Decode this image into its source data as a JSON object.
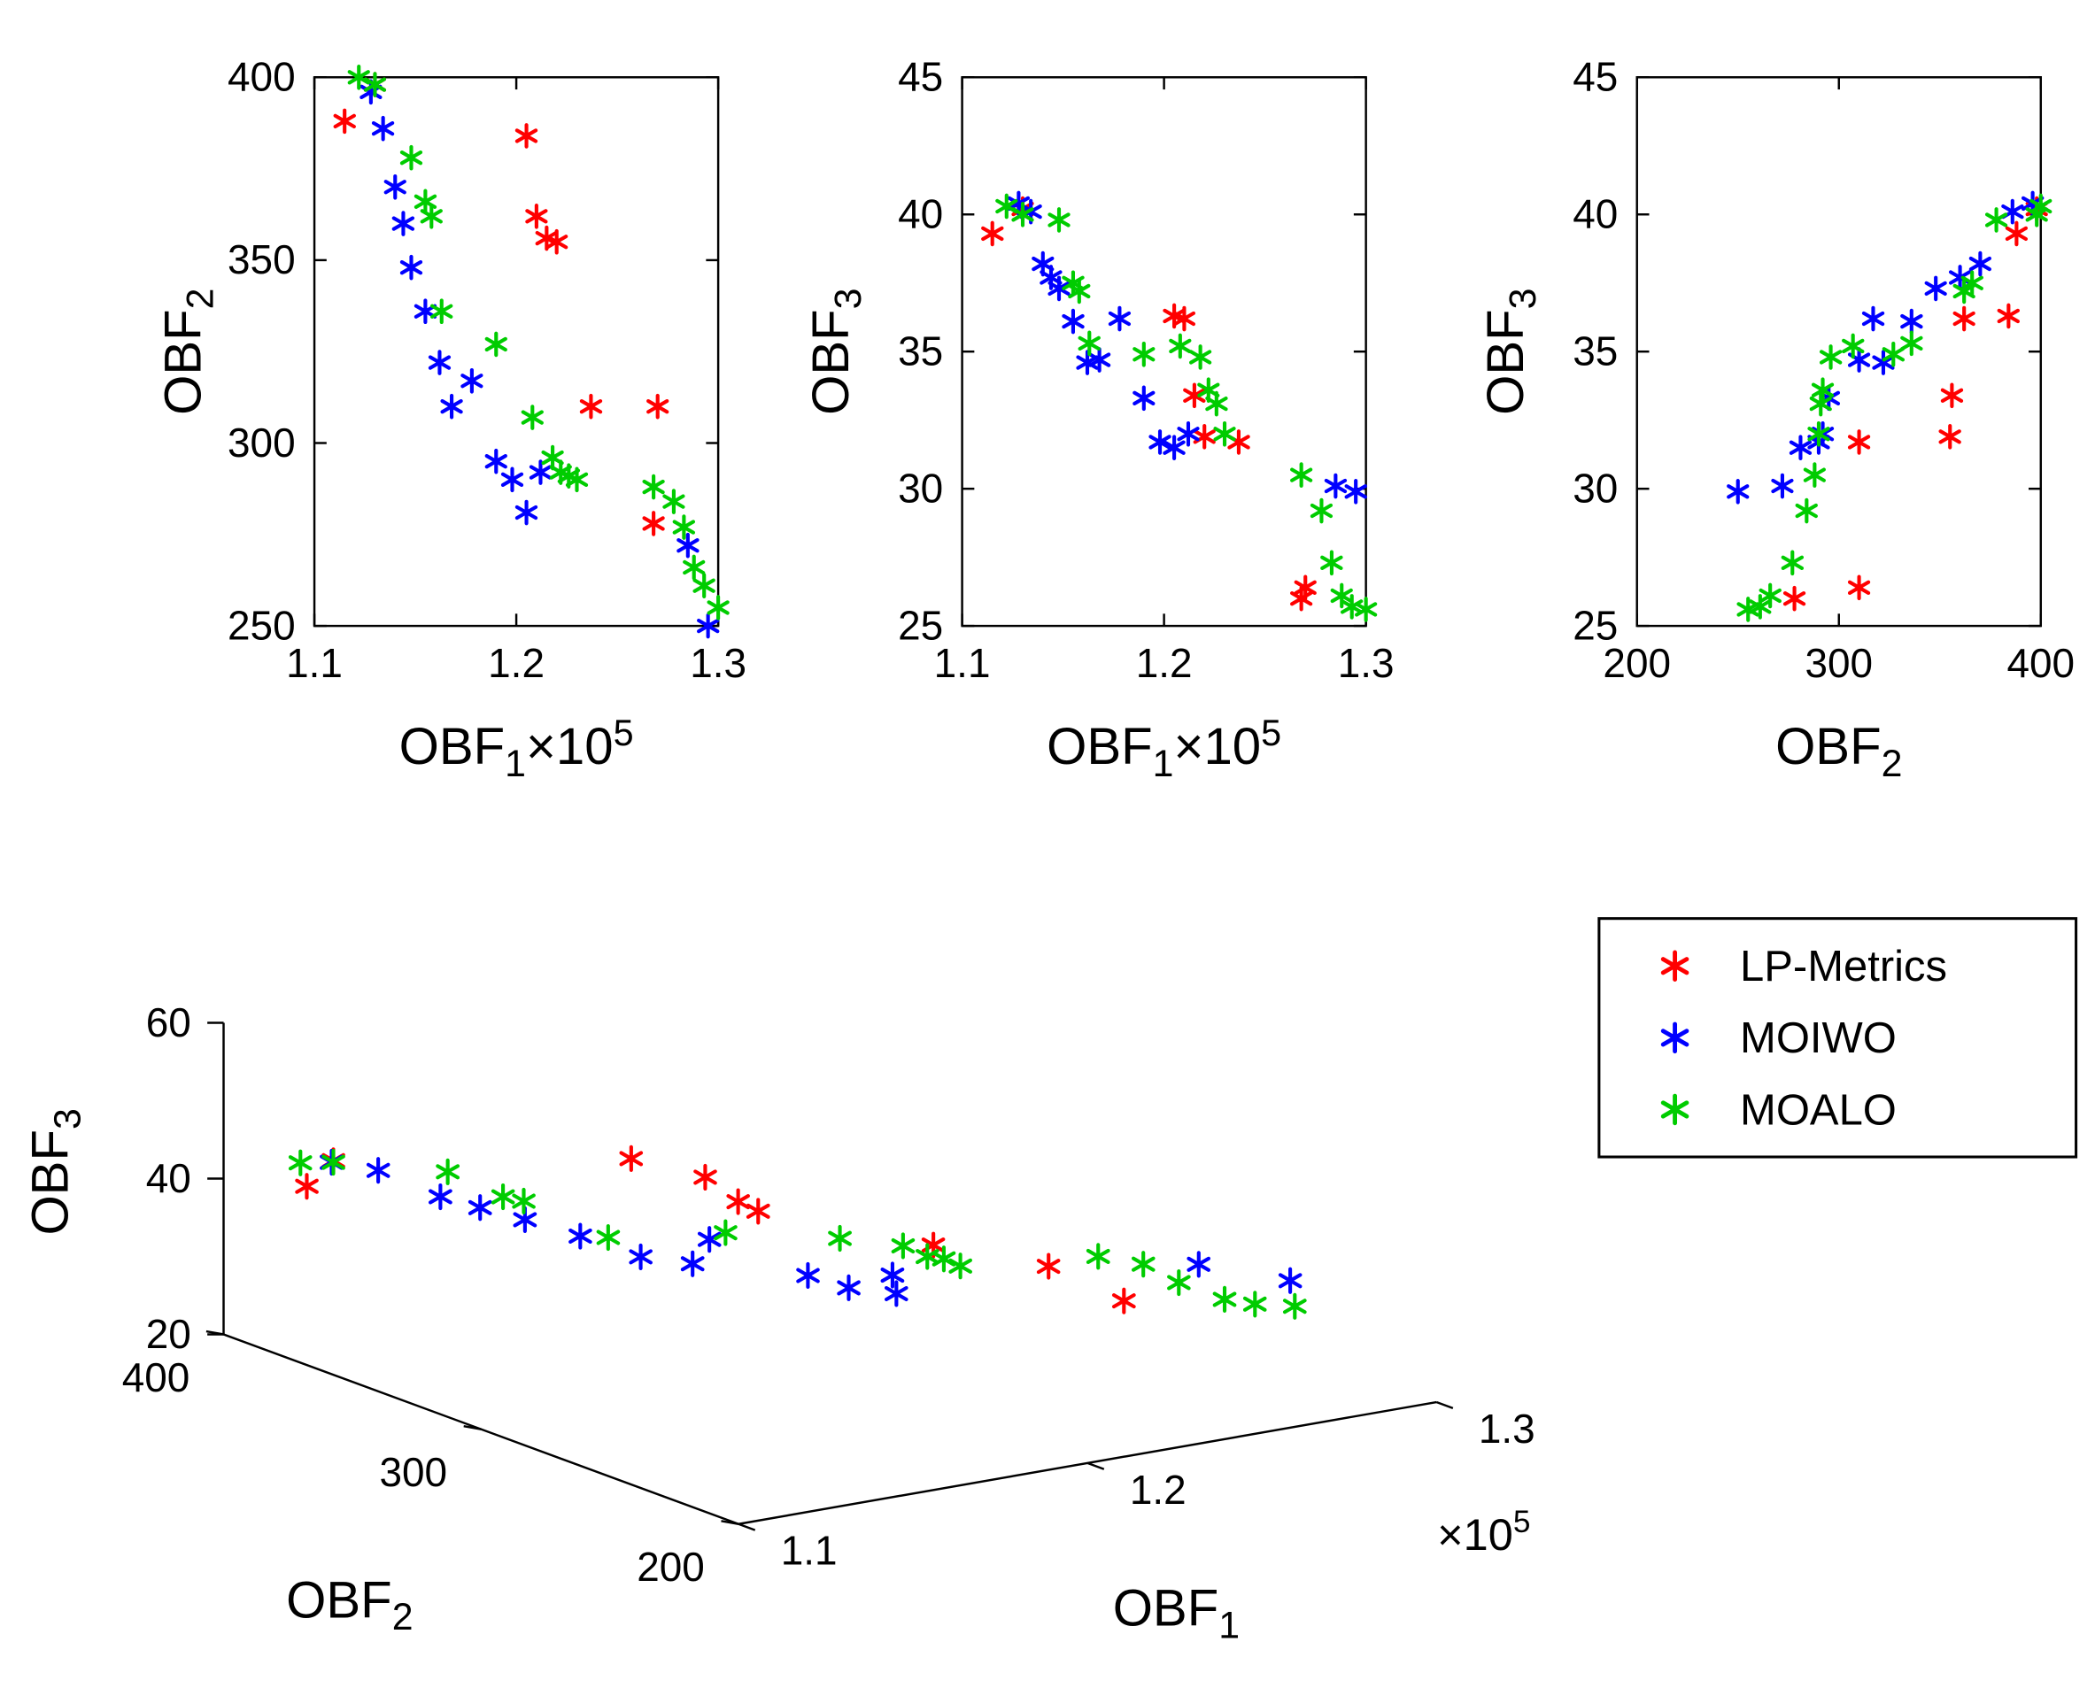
{
  "figure": {
    "background": "#FFFFFF",
    "marker_style": "asterisk",
    "text_color": "#000000",
    "axis_color": "#000000"
  },
  "legend": {
    "position": "right-of-bottom-plot",
    "border": true,
    "entries": [
      {
        "label": "LP-Metrics",
        "color": "#FF0000"
      },
      {
        "label": "MOIWO",
        "color": "#0000FF"
      },
      {
        "label": "MOALO",
        "color": "#00CC00"
      }
    ]
  },
  "chart_data": [
    {
      "id": "obf2-vs-obf1",
      "type": "scatter",
      "grid": false,
      "xlabel": {
        "base": "OBF",
        "sub": "1",
        "mult": "×10",
        "exp": "5"
      },
      "ylabel": {
        "base": "OBF",
        "sub": "2"
      },
      "xlim": [
        1.1,
        1.3
      ],
      "ylim": [
        250,
        400
      ],
      "xticks": [
        1.1,
        1.2,
        1.3
      ],
      "xtick_labels": [
        "1.1",
        "1.2",
        "1.3"
      ],
      "yticks": [
        250,
        300,
        350,
        400
      ],
      "ytick_labels": [
        "250",
        "300",
        "350",
        "400"
      ],
      "series": [
        {
          "name": "LP-Metrics",
          "color": "#FF0000",
          "points": [
            [
              1.115,
              388
            ],
            [
              1.13,
              398
            ],
            [
              1.205,
              384
            ],
            [
              1.21,
              362
            ],
            [
              1.215,
              356
            ],
            [
              1.22,
              355
            ],
            [
              1.237,
              310
            ],
            [
              1.27,
              310
            ],
            [
              1.268,
              278
            ]
          ]
        },
        {
          "name": "MOIWO",
          "color": "#0000FF",
          "points": [
            [
              1.128,
              396
            ],
            [
              1.134,
              386
            ],
            [
              1.14,
              370
            ],
            [
              1.144,
              360
            ],
            [
              1.148,
              348
            ],
            [
              1.155,
              336
            ],
            [
              1.162,
              322
            ],
            [
              1.168,
              310
            ],
            [
              1.178,
              317
            ],
            [
              1.19,
              295
            ],
            [
              1.198,
              290
            ],
            [
              1.205,
              281
            ],
            [
              1.212,
              292
            ],
            [
              1.285,
              272
            ],
            [
              1.295,
              250
            ]
          ]
        },
        {
          "name": "MOALO",
          "color": "#00CC00",
          "points": [
            [
              1.122,
              400
            ],
            [
              1.13,
              398
            ],
            [
              1.148,
              378
            ],
            [
              1.155,
              366
            ],
            [
              1.158,
              362
            ],
            [
              1.163,
              336
            ],
            [
              1.19,
              327
            ],
            [
              1.208,
              307
            ],
            [
              1.218,
              296
            ],
            [
              1.222,
              292
            ],
            [
              1.226,
              291
            ],
            [
              1.23,
              290
            ],
            [
              1.268,
              288
            ],
            [
              1.278,
              284
            ],
            [
              1.283,
              277
            ],
            [
              1.288,
              266
            ],
            [
              1.293,
              261
            ],
            [
              1.3,
              255
            ]
          ]
        }
      ]
    },
    {
      "id": "obf3-vs-obf1",
      "type": "scatter",
      "grid": false,
      "xlabel": {
        "base": "OBF",
        "sub": "1",
        "mult": "×10",
        "exp": "5"
      },
      "ylabel": {
        "base": "OBF",
        "sub": "3"
      },
      "xlim": [
        1.1,
        1.3
      ],
      "ylim": [
        25,
        45
      ],
      "xticks": [
        1.1,
        1.2,
        1.3
      ],
      "xtick_labels": [
        "1.1",
        "1.2",
        "1.3"
      ],
      "yticks": [
        25,
        30,
        35,
        40,
        45
      ],
      "ytick_labels": [
        "25",
        "30",
        "35",
        "40",
        "45"
      ],
      "series": [
        {
          "name": "LP-Metrics",
          "color": "#FF0000",
          "points": [
            [
              1.115,
              39.3
            ],
            [
              1.13,
              40.2
            ],
            [
              1.205,
              36.3
            ],
            [
              1.21,
              36.2
            ],
            [
              1.215,
              33.4
            ],
            [
              1.22,
              31.9
            ],
            [
              1.237,
              31.7
            ],
            [
              1.27,
              26.4
            ],
            [
              1.268,
              26.0
            ]
          ]
        },
        {
          "name": "MOIWO",
          "color": "#0000FF",
          "points": [
            [
              1.128,
              40.4
            ],
            [
              1.134,
              40.1
            ],
            [
              1.14,
              38.2
            ],
            [
              1.144,
              37.7
            ],
            [
              1.148,
              37.3
            ],
            [
              1.155,
              36.1
            ],
            [
              1.162,
              34.6
            ],
            [
              1.168,
              34.7
            ],
            [
              1.178,
              36.2
            ],
            [
              1.19,
              33.3
            ],
            [
              1.198,
              31.7
            ],
            [
              1.205,
              31.5
            ],
            [
              1.212,
              32.0
            ],
            [
              1.285,
              30.1
            ],
            [
              1.295,
              29.9
            ]
          ]
        },
        {
          "name": "MOALO",
          "color": "#00CC00",
          "points": [
            [
              1.122,
              40.3
            ],
            [
              1.13,
              40.0
            ],
            [
              1.148,
              39.8
            ],
            [
              1.155,
              37.5
            ],
            [
              1.158,
              37.2
            ],
            [
              1.163,
              35.3
            ],
            [
              1.19,
              34.9
            ],
            [
              1.208,
              35.2
            ],
            [
              1.218,
              34.8
            ],
            [
              1.222,
              33.6
            ],
            [
              1.226,
              33.1
            ],
            [
              1.23,
              32.0
            ],
            [
              1.268,
              30.5
            ],
            [
              1.278,
              29.2
            ],
            [
              1.283,
              27.3
            ],
            [
              1.288,
              26.1
            ],
            [
              1.293,
              25.7
            ],
            [
              1.3,
              25.6
            ]
          ]
        }
      ]
    },
    {
      "id": "obf3-vs-obf2",
      "type": "scatter",
      "grid": false,
      "xlabel": {
        "base": "OBF",
        "sub": "2"
      },
      "ylabel": {
        "base": "OBF",
        "sub": "3"
      },
      "xlim": [
        200,
        400
      ],
      "ylim": [
        25,
        45
      ],
      "xticks": [
        200,
        300,
        400
      ],
      "xtick_labels": [
        "200",
        "300",
        "400"
      ],
      "yticks": [
        25,
        30,
        35,
        40,
        45
      ],
      "ytick_labels": [
        "25",
        "30",
        "35",
        "40",
        "45"
      ],
      "series": [
        {
          "name": "LP-Metrics",
          "color": "#FF0000",
          "points": [
            [
              388,
              39.3
            ],
            [
              398,
              40.2
            ],
            [
              384,
              36.3
            ],
            [
              362,
              36.2
            ],
            [
              356,
              33.4
            ],
            [
              355,
              31.9
            ],
            [
              310,
              31.7
            ],
            [
              310,
              26.4
            ],
            [
              278,
              26.0
            ]
          ]
        },
        {
          "name": "MOIWO",
          "color": "#0000FF",
          "points": [
            [
              396,
              40.4
            ],
            [
              386,
              40.1
            ],
            [
              370,
              38.2
            ],
            [
              360,
              37.7
            ],
            [
              348,
              37.3
            ],
            [
              336,
              36.1
            ],
            [
              322,
              34.6
            ],
            [
              310,
              34.7
            ],
            [
              317,
              36.2
            ],
            [
              295,
              33.3
            ],
            [
              290,
              31.7
            ],
            [
              281,
              31.5
            ],
            [
              292,
              32.0
            ],
            [
              272,
              30.1
            ],
            [
              250,
              29.9
            ]
          ]
        },
        {
          "name": "MOALO",
          "color": "#00CC00",
          "points": [
            [
              400,
              40.3
            ],
            [
              398,
              40.0
            ],
            [
              378,
              39.8
            ],
            [
              366,
              37.5
            ],
            [
              362,
              37.2
            ],
            [
              336,
              35.3
            ],
            [
              327,
              34.9
            ],
            [
              307,
              35.2
            ],
            [
              296,
              34.8
            ],
            [
              292,
              33.6
            ],
            [
              291,
              33.1
            ],
            [
              290,
              32.0
            ],
            [
              288,
              30.5
            ],
            [
              284,
              29.2
            ],
            [
              277,
              27.3
            ],
            [
              266,
              26.1
            ],
            [
              261,
              25.7
            ],
            [
              255,
              25.6
            ]
          ]
        }
      ]
    },
    {
      "id": "pareto-3d",
      "type": "scatter3d",
      "grid": false,
      "xlabel": {
        "base": "OBF",
        "sub": "1"
      },
      "x_exponent": {
        "base": "×10",
        "exp": "5"
      },
      "ylabel": {
        "base": "OBF",
        "sub": "2"
      },
      "zlabel": {
        "base": "OBF",
        "sub": "3"
      },
      "xlim": [
        1.1,
        1.3
      ],
      "ylim": [
        200,
        400
      ],
      "zlim": [
        20,
        60
      ],
      "xticks": [
        1.1,
        1.2,
        1.3
      ],
      "xtick_labels": [
        "1.1",
        "1.2",
        "1.3"
      ],
      "yticks": [
        400,
        300,
        200
      ],
      "ytick_labels": [
        "400",
        "300",
        "200"
      ],
      "zticks": [
        20,
        40,
        60
      ],
      "ztick_labels": [
        "20",
        "40",
        "60"
      ],
      "series": [
        {
          "name": "LP-Metrics",
          "color": "#FF0000",
          "points": [
            [
              1.115,
              388,
              39.3
            ],
            [
              1.13,
              398,
              40.2
            ],
            [
              1.205,
              384,
              36.3
            ],
            [
              1.21,
              362,
              36.2
            ],
            [
              1.215,
              356,
              33.4
            ],
            [
              1.22,
              355,
              31.9
            ],
            [
              1.237,
              310,
              31.7
            ],
            [
              1.27,
              310,
              26.4
            ],
            [
              1.268,
              278,
              26.0
            ]
          ]
        },
        {
          "name": "MOIWO",
          "color": "#0000FF",
          "points": [
            [
              1.128,
              396,
              40.4
            ],
            [
              1.134,
              386,
              40.1
            ],
            [
              1.14,
              370,
              38.2
            ],
            [
              1.144,
              360,
              37.7
            ],
            [
              1.148,
              348,
              37.3
            ],
            [
              1.155,
              336,
              36.1
            ],
            [
              1.162,
              322,
              34.6
            ],
            [
              1.168,
              310,
              34.7
            ],
            [
              1.178,
              317,
              36.2
            ],
            [
              1.19,
              295,
              33.3
            ],
            [
              1.198,
              290,
              31.7
            ],
            [
              1.205,
              281,
              31.5
            ],
            [
              1.212,
              292,
              32.0
            ],
            [
              1.285,
              272,
              30.1
            ],
            [
              1.295,
              250,
              29.9
            ]
          ]
        },
        {
          "name": "MOALO",
          "color": "#00CC00",
          "points": [
            [
              1.122,
              400,
              40.3
            ],
            [
              1.13,
              398,
              40.0
            ],
            [
              1.148,
              378,
              39.8
            ],
            [
              1.155,
              366,
              37.5
            ],
            [
              1.158,
              362,
              37.2
            ],
            [
              1.163,
              336,
              35.3
            ],
            [
              1.19,
              327,
              34.9
            ],
            [
              1.208,
              307,
              35.2
            ],
            [
              1.218,
              296,
              34.8
            ],
            [
              1.222,
              292,
              33.6
            ],
            [
              1.226,
              291,
              33.1
            ],
            [
              1.23,
              290,
              32.0
            ],
            [
              1.268,
              288,
              30.5
            ],
            [
              1.278,
              284,
              29.2
            ],
            [
              1.283,
              277,
              27.3
            ],
            [
              1.288,
              266,
              26.1
            ],
            [
              1.293,
              261,
              25.7
            ],
            [
              1.3,
              255,
              25.6
            ]
          ]
        }
      ]
    }
  ]
}
